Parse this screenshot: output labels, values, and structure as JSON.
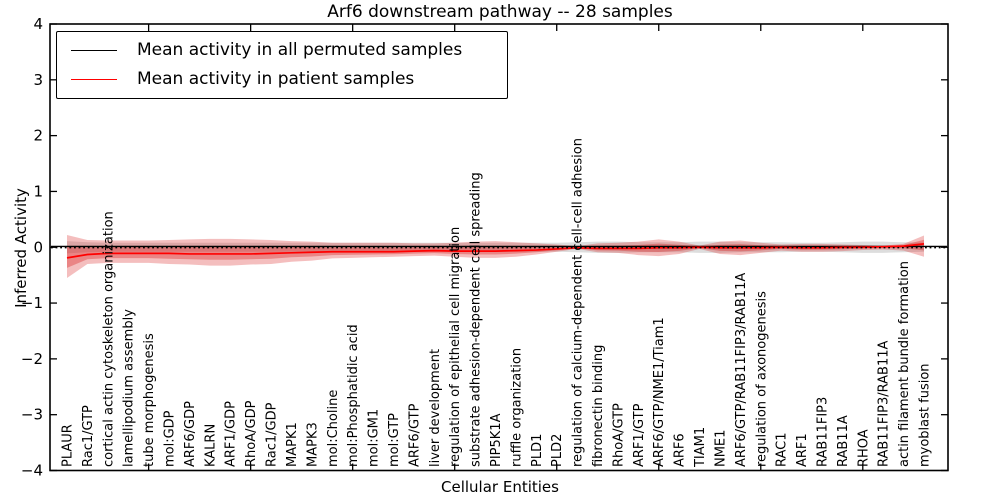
{
  "figure": {
    "title": "Arf6 downstream pathway -- 28 samples",
    "xlabel": "Cellular Entities",
    "ylabel": "Inferred Activity"
  },
  "legend": {
    "items": [
      {
        "label": "Mean activity in all permuted samples",
        "color": "#000000"
      },
      {
        "label": "Mean activity in patient samples",
        "color": "#ff0000"
      }
    ]
  },
  "colors": {
    "patient_line": "#ff0000",
    "permuted_line": "#000000",
    "patient_band": "rgba(220,40,40,0.30)",
    "patient_band_inner": "rgba(215,30,30,0.35)",
    "permuted_band": "rgba(120,120,120,0.25)",
    "frame": "#000000"
  },
  "chart_data": {
    "type": "line",
    "title": "Arf6 downstream pathway -- 28 samples",
    "xlabel": "Cellular Entities",
    "ylabel": "Inferred Activity",
    "ylim": [
      -4,
      4
    ],
    "yticks": [
      4,
      3,
      2,
      1,
      0,
      -1,
      -2,
      -3,
      -4
    ],
    "ytick_labels": [
      "4",
      "3",
      "2",
      "1",
      "0",
      "−1",
      "−2",
      "−3",
      "−4"
    ],
    "grid": false,
    "legend_position": "upper left",
    "zero_line": {
      "style": "dotted",
      "color": "#000000",
      "value": 0
    },
    "categories": [
      "PLAUR",
      "Rac1/GTP",
      "cortical actin cytoskeleton organization",
      "lamellipodium assembly",
      "tube morphogenesis",
      "mol:GDP",
      "ARF6/GDP",
      "KALRN",
      "ARF1/GDP",
      "RhoA/GDP",
      "Rac1/GDP",
      "MAPK1",
      "MAPK3",
      "mol:Choline",
      "mol:Phosphatidic acid",
      "mol:GM1",
      "mol:GTP",
      "ARF6/GTP",
      "liver development",
      "regulation of epithelial cell migration",
      "substrate adhesion-dependent cell spreading",
      "PIP5K1A",
      "ruffle organization",
      "PLD1",
      "PLD2",
      "regulation of calcium-dependent cell-cell adhesion",
      "fibronectin binding",
      "RhoA/GTP",
      "ARF1/GTP",
      "ARF6/GTP/NME1/Tiam1",
      "ARF6",
      "TIAM1",
      "NME1",
      "ARF6/GTP/RAB11FIP3/RAB11A",
      "regulation of axonogenesis",
      "RAC1",
      "ARF1",
      "RAB11FIP3",
      "RAB11A",
      "RHOA",
      "RAB11FIP3/RAB11A",
      "actin filament bundle formation",
      "myoblast fusion"
    ],
    "series": [
      {
        "name": "Mean activity in all permuted samples",
        "color": "#000000",
        "values": [
          0,
          0,
          0,
          0,
          0,
          0,
          0,
          0,
          0,
          0,
          0,
          0,
          0,
          0,
          0,
          0,
          0,
          0,
          0,
          0,
          0,
          0,
          0,
          0,
          0,
          0,
          0,
          0,
          0,
          0,
          0,
          0,
          0,
          0,
          0,
          0,
          0,
          0,
          0,
          0,
          0,
          0,
          0
        ]
      },
      {
        "name": "Mean activity in patient samples",
        "color": "#ff0000",
        "values": [
          -0.19,
          -0.13,
          -0.11,
          -0.11,
          -0.11,
          -0.11,
          -0.12,
          -0.12,
          -0.12,
          -0.12,
          -0.11,
          -0.1,
          -0.09,
          -0.08,
          -0.08,
          -0.08,
          -0.08,
          -0.07,
          -0.06,
          -0.07,
          -0.07,
          -0.07,
          -0.06,
          -0.05,
          -0.03,
          -0.01,
          -0.02,
          -0.02,
          -0.02,
          -0.01,
          -0.01,
          0.0,
          -0.01,
          -0.01,
          -0.01,
          0.0,
          -0.01,
          -0.01,
          0.0,
          0.0,
          0.01,
          0.02,
          0.06
        ]
      }
    ],
    "bands": [
      {
        "name": "patient-std",
        "upper": [
          0.22,
          0.13,
          0.12,
          0.12,
          0.12,
          0.13,
          0.14,
          0.15,
          0.15,
          0.14,
          0.13,
          0.11,
          0.1,
          0.08,
          0.08,
          0.08,
          0.08,
          0.07,
          0.07,
          0.08,
          0.1,
          0.11,
          0.09,
          0.07,
          0.05,
          0.02,
          0.07,
          0.08,
          0.1,
          0.14,
          0.1,
          0.03,
          0.1,
          0.12,
          0.08,
          0.05,
          0.06,
          0.06,
          0.05,
          0.04,
          0.03,
          0.06,
          0.21
        ],
        "lower": [
          -0.55,
          -0.3,
          -0.28,
          -0.28,
          -0.28,
          -0.3,
          -0.31,
          -0.33,
          -0.33,
          -0.31,
          -0.3,
          -0.26,
          -0.24,
          -0.2,
          -0.19,
          -0.18,
          -0.17,
          -0.16,
          -0.15,
          -0.17,
          -0.19,
          -0.19,
          -0.17,
          -0.13,
          -0.08,
          -0.03,
          -0.09,
          -0.1,
          -0.14,
          -0.16,
          -0.12,
          -0.03,
          -0.12,
          -0.14,
          -0.1,
          -0.06,
          -0.08,
          -0.08,
          -0.07,
          -0.05,
          -0.04,
          -0.06,
          -0.17
        ]
      },
      {
        "name": "permuted-std",
        "halfwidth": [
          0.11,
          0.09,
          0.08,
          0.08,
          0.08,
          0.08,
          0.08,
          0.08,
          0.08,
          0.08,
          0.08,
          0.08,
          0.08,
          0.08,
          0.08,
          0.08,
          0.08,
          0.08,
          0.08,
          0.08,
          0.08,
          0.08,
          0.08,
          0.08,
          0.08,
          0.09,
          0.1,
          0.1,
          0.09,
          0.09,
          0.09,
          0.1,
          0.1,
          0.09,
          0.09,
          0.09,
          0.08,
          0.08,
          0.09,
          0.1,
          0.1,
          0.09,
          0.08
        ]
      }
    ]
  }
}
